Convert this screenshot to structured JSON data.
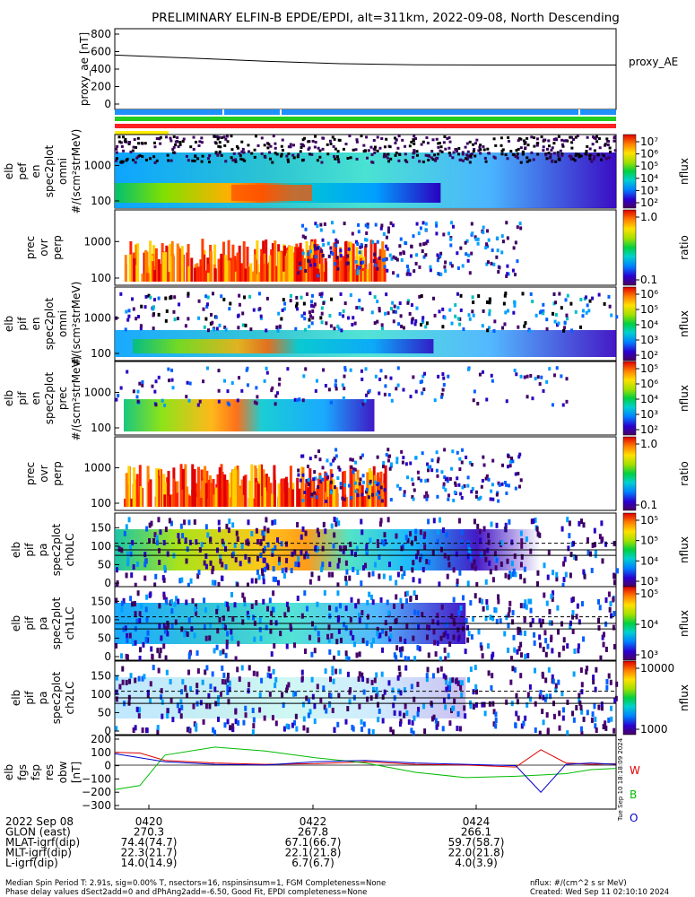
{
  "title": "PRELIMINARY ELFIN-B EPDE/EPDI, alt=311km, 2022-09-08, North Descending",
  "colors": {
    "bar_blue": "#1e90ff",
    "bar_green": "#22cc22",
    "bar_red": "#ff2222",
    "bar_yellow": "#ffee00",
    "bar_black": "#000000",
    "line_red": "#dd0000",
    "line_green": "#00bb00",
    "line_blue": "#0000cc"
  },
  "chart_data": [
    {
      "type": "line",
      "panel": "proxy_ae",
      "ylabel": "proxy_ae [nT]",
      "ylim": [
        0,
        800
      ],
      "yticks": [
        "800",
        "600",
        "400",
        "200",
        "0"
      ],
      "legend": "proxy_AE",
      "x": [
        0,
        0.15,
        0.3,
        0.45,
        0.6,
        0.75,
        1.0
      ],
      "values": [
        560,
        525,
        490,
        462,
        448,
        446,
        446
      ]
    },
    {
      "type": "heatmap",
      "panel": "elb_pef_en_spec2plot_omni",
      "ylabel_lines": [
        "elb",
        "pef",
        "en",
        "spec2plot",
        "omni",
        "#/(scm²strMeV)"
      ],
      "yticks": [
        "1000",
        "100"
      ],
      "colorbar": {
        "label": "nflux",
        "ticks": [
          "10⁷",
          "10⁶",
          "10⁵",
          "10⁴",
          "10³",
          "10²"
        ]
      }
    },
    {
      "type": "heatmap",
      "panel": "prec_ovr_perp_e",
      "ylabel_lines": [
        "prec",
        "ovr",
        "perp"
      ],
      "yticks": [
        "1000",
        "100"
      ],
      "colorbar": {
        "label": "ratio",
        "ticks": [
          "1.0",
          "0.1"
        ]
      }
    },
    {
      "type": "heatmap",
      "panel": "elb_pif_en_spec2plot_omni",
      "ylabel_lines": [
        "elb",
        "pif",
        "en",
        "spec2plot",
        "omni",
        "#/(scm²strMeV)"
      ],
      "yticks": [
        "1000",
        "100"
      ],
      "colorbar": {
        "label": "nflux",
        "ticks": [
          "10⁶",
          "10⁵",
          "10⁴",
          "10³",
          "10²"
        ]
      }
    },
    {
      "type": "heatmap",
      "panel": "elb_pif_en_spec2plot_prec",
      "ylabel_lines": [
        "elb",
        "pif",
        "en",
        "spec2plot",
        "prec",
        "#/(scm²strMeV)"
      ],
      "yticks": [
        "1000",
        "100"
      ],
      "colorbar": {
        "label": "nflux",
        "ticks": [
          "10⁵",
          "10⁶",
          "10⁴",
          "10³",
          "10²"
        ]
      }
    },
    {
      "type": "heatmap",
      "panel": "prec_ovr_perp_i",
      "ylabel_lines": [
        "prec",
        "ovr",
        "perp"
      ],
      "yticks": [
        "1000",
        "100"
      ],
      "colorbar": {
        "label": "ratio",
        "ticks": [
          "1.0",
          "0.1"
        ]
      }
    },
    {
      "type": "heatmap",
      "panel": "elb_pif_pa_spec2plot_ch0LC",
      "ylabel_lines": [
        "elb",
        "pif",
        "pa",
        "spec2plot",
        "ch0LC"
      ],
      "yticks": [
        "150",
        "100",
        "50",
        "0"
      ],
      "colorbar": {
        "label": "nflux",
        "ticks": [
          "10⁵",
          "10⁵",
          "10⁴",
          "10³"
        ]
      }
    },
    {
      "type": "heatmap",
      "panel": "elb_pif_pa_spec2plot_ch1LC",
      "ylabel_lines": [
        "elb",
        "pif",
        "pa",
        "spec2plot",
        "ch1LC"
      ],
      "yticks": [
        "150",
        "100",
        "50",
        "0"
      ],
      "colorbar": {
        "label": "nflux",
        "ticks": [
          "10⁵",
          "10⁴",
          "10³"
        ]
      }
    },
    {
      "type": "heatmap",
      "panel": "elb_pif_pa_spec2plot_ch2LC",
      "ylabel_lines": [
        "elb",
        "pif",
        "pa",
        "spec2plot",
        "ch2LC"
      ],
      "yticks": [
        "150",
        "100",
        "50",
        "0"
      ],
      "colorbar": {
        "label": "nflux",
        "ticks": [
          "10000",
          "1000"
        ]
      }
    },
    {
      "type": "line",
      "panel": "elb_fgs_fsp_res_obw",
      "ylabel_lines": [
        "elb",
        "fgs",
        "fsp",
        "res",
        "obw",
        "[nT]"
      ],
      "ylim": [
        -300,
        200
      ],
      "yticks": [
        "200",
        "100",
        "0",
        "−100",
        "−200",
        "−300"
      ],
      "legend": [
        "W",
        "B",
        "O"
      ],
      "series": [
        {
          "name": "W",
          "x": [
            0,
            0.05,
            0.1,
            0.2,
            0.3,
            0.4,
            0.5,
            0.6,
            0.7,
            0.8,
            0.85,
            0.9,
            0.95,
            1.0
          ],
          "values": [
            100,
            95,
            40,
            20,
            10,
            15,
            30,
            10,
            5,
            -10,
            120,
            20,
            10,
            15
          ]
        },
        {
          "name": "B",
          "x": [
            0,
            0.05,
            0.1,
            0.2,
            0.3,
            0.4,
            0.5,
            0.6,
            0.7,
            0.8,
            0.85,
            0.9,
            0.95,
            1.0
          ],
          "values": [
            -180,
            -150,
            80,
            140,
            110,
            60,
            20,
            -50,
            -90,
            -80,
            -70,
            -60,
            -30,
            -20
          ]
        },
        {
          "name": "O",
          "x": [
            0,
            0.05,
            0.1,
            0.2,
            0.3,
            0.4,
            0.5,
            0.6,
            0.7,
            0.8,
            0.85,
            0.9,
            0.95,
            1.0
          ],
          "values": [
            90,
            60,
            30,
            10,
            5,
            30,
            40,
            20,
            10,
            0,
            -200,
            10,
            20,
            10
          ]
        }
      ]
    }
  ],
  "ephemeris": {
    "rows": [
      {
        "label": "2022 Sep 08",
        "v1": "0420",
        "v2": "0422",
        "v3": "0424"
      },
      {
        "label": "GLON (east)",
        "v1": "270.3",
        "v2": "267.8",
        "v3": "266.1"
      },
      {
        "label": "MLAT-igrf(dip)",
        "v1": "74.4(74.7)",
        "v2": "67.1(66.7)",
        "v3": "59.7(58.7)"
      },
      {
        "label": "MLT-igrf(dip)",
        "v1": "22.3(21.7)",
        "v2": "22.1(21.8)",
        "v3": "22.0(21.8)"
      },
      {
        "label": "L-igrf(dip)",
        "v1": "14.0(14.9)",
        "v2": "6.7(6.7)",
        "v3": "4.0(3.9)"
      }
    ]
  },
  "footer": {
    "left_line1": "Median Spin Period T: 2.91s, sig=0.00% T, nsectors=16, nspinsinsum=1, FGM Completeness=None",
    "left_line2": "Phase delay values dSect2add=0 and dPhAng2add=-6.50, Good Fit, EPDI completeness=None",
    "right_line1": "nflux: #/(cm^2 s sr MeV)",
    "right_line2": "Created: Wed Sep 11 02:10:10 2024",
    "side_stamp": "Tue Sep 10 18:18:09 2024"
  }
}
